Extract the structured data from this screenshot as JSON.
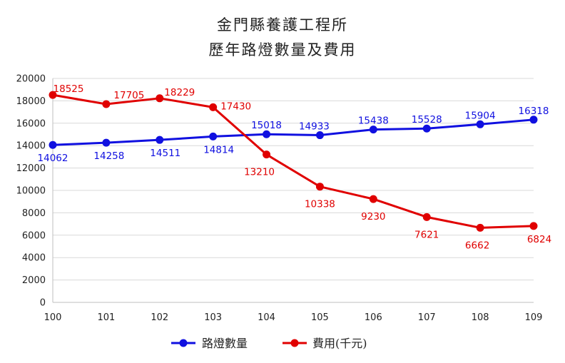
{
  "chart_data": {
    "type": "line",
    "title": "金門縣養護工程所",
    "subtitle": "歷年路燈數量及費用",
    "categories": [
      "100",
      "101",
      "102",
      "103",
      "104",
      "105",
      "106",
      "107",
      "108",
      "109"
    ],
    "y_ticks": [
      "0",
      "2000",
      "4000",
      "6000",
      "8000",
      "10000",
      "12000",
      "14000",
      "16000",
      "18000",
      "20000"
    ],
    "ylim": [
      0,
      20000
    ],
    "grid": "horizontal",
    "legend_position": "bottom",
    "series": [
      {
        "name": "路燈數量",
        "color": "#1010e0",
        "values": [
          14062,
          14258,
          14511,
          14814,
          15018,
          14933,
          15438,
          15528,
          15904,
          16318
        ],
        "labels": [
          "14062",
          "14258",
          "14511",
          "14814",
          "15018",
          "14933",
          "15438",
          "15528",
          "15904",
          "16318"
        ]
      },
      {
        "name": "費用(千元)",
        "color": "#e00000",
        "values": [
          18525,
          17705,
          18229,
          17430,
          13210,
          10338,
          9230,
          7621,
          6662,
          6824
        ],
        "labels": [
          "18525",
          "17705",
          "18229",
          "17430",
          "13210",
          "10338",
          "9230",
          "7621",
          "6662",
          "6824"
        ]
      }
    ]
  }
}
